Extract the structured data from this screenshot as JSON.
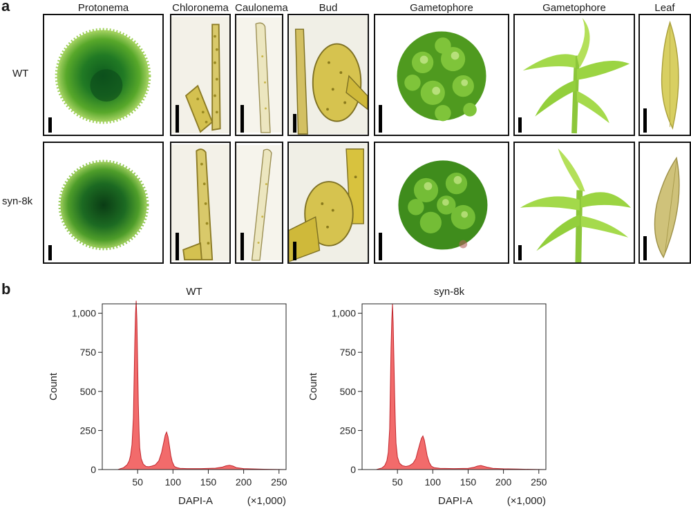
{
  "figure": {
    "panel_a": {
      "letter": "a",
      "columns": [
        "Protonema",
        "Chloronema",
        "Caulonema",
        "Bud",
        "Gametophore",
        "Gametophore",
        "Leaf"
      ],
      "rows": [
        "WT",
        "syn-8k"
      ]
    },
    "panel_b": {
      "letter": "b"
    }
  },
  "chart_data": [
    {
      "type": "area",
      "title": "WT",
      "xlabel": "DAPI-A",
      "xunit": "(×1,000)",
      "ylabel": "Count",
      "xlim": [
        0,
        260
      ],
      "ylim": [
        0,
        1060
      ],
      "xticks": [
        "50",
        "100",
        "150",
        "200",
        "250"
      ],
      "yticks": [
        "0",
        "250",
        "500",
        "750",
        "1,000"
      ],
      "fill_color": "#f26b6b",
      "stroke_color": "#c0262d",
      "series": [
        {
          "x": [
            22,
            30,
            35,
            38,
            40,
            42,
            44,
            45,
            46,
            47,
            48,
            49,
            50,
            51,
            52,
            53,
            55,
            58,
            62,
            66,
            70,
            75,
            80,
            84,
            87,
            89,
            91,
            93,
            95,
            97,
            99,
            102,
            106,
            110,
            120,
            140,
            160,
            170,
            175,
            180,
            185,
            190,
            200,
            220,
            245,
            260
          ],
          "values": [
            0,
            12,
            30,
            55,
            90,
            160,
            330,
            560,
            820,
            1000,
            1080,
            960,
            680,
            420,
            250,
            140,
            70,
            35,
            20,
            18,
            22,
            30,
            55,
            110,
            175,
            220,
            240,
            210,
            150,
            90,
            50,
            20,
            12,
            8,
            6,
            6,
            9,
            16,
            24,
            28,
            22,
            12,
            6,
            3,
            1,
            0
          ]
        }
      ]
    },
    {
      "type": "area",
      "title": "syn-8k",
      "xlabel": "DAPI-A",
      "xunit": "(×1,000)",
      "ylabel": "Count",
      "xlim": [
        0,
        260
      ],
      "ylim": [
        0,
        1060
      ],
      "xticks": [
        "50",
        "100",
        "150",
        "200",
        "250"
      ],
      "yticks": [
        "0",
        "250",
        "500",
        "750",
        "1,000"
      ],
      "fill_color": "#f26b6b",
      "stroke_color": "#c0262d",
      "series": [
        {
          "x": [
            20,
            28,
            32,
            35,
            37,
            39,
            40,
            41,
            42,
            43,
            44,
            45,
            46,
            47,
            48,
            50,
            53,
            57,
            62,
            67,
            72,
            76,
            79,
            82,
            84,
            86,
            88,
            90,
            92,
            95,
            98,
            102,
            110,
            130,
            150,
            158,
            163,
            168,
            173,
            178,
            185,
            200,
            220,
            245,
            260
          ],
          "values": [
            0,
            10,
            25,
            55,
            110,
            260,
            520,
            780,
            960,
            1060,
            940,
            720,
            480,
            300,
            170,
            80,
            40,
            25,
            20,
            25,
            40,
            70,
            120,
            170,
            200,
            215,
            190,
            140,
            90,
            45,
            22,
            12,
            8,
            6,
            8,
            14,
            22,
            26,
            20,
            14,
            8,
            5,
            3,
            1,
            0
          ]
        }
      ]
    }
  ]
}
